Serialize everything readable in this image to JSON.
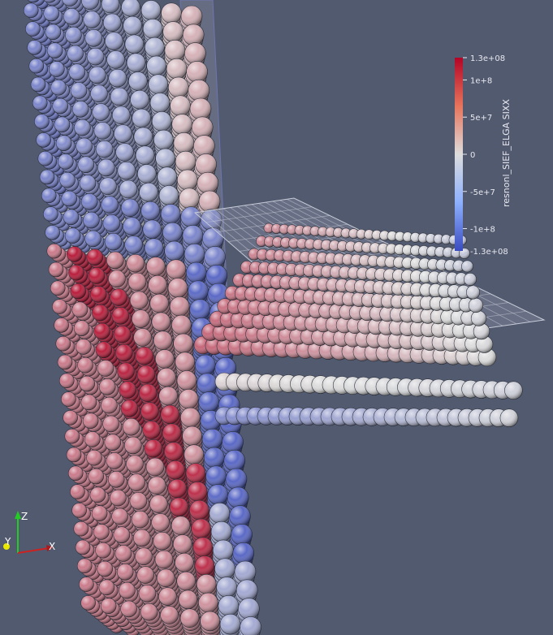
{
  "colors": {
    "background": "#525a70",
    "cold": "#3b4cc0",
    "neutral": "#dddddd",
    "hot": "#b40426"
  },
  "colorbar": {
    "title": "resnonl_SIEF_ELGA SIXX",
    "labels": [
      "1.3e+08",
      "1e+8",
      "5e+7",
      "0",
      "-5e+7",
      "-1e+8",
      "-1.3e+08"
    ],
    "values": [
      130000000,
      100000000,
      50000000,
      0,
      -50000000,
      -100000000,
      -130000000
    ],
    "range": [
      -130000000,
      130000000
    ]
  },
  "orientation_axes": {
    "x_label": "X",
    "y_label": "Y",
    "z_label": "Z"
  }
}
